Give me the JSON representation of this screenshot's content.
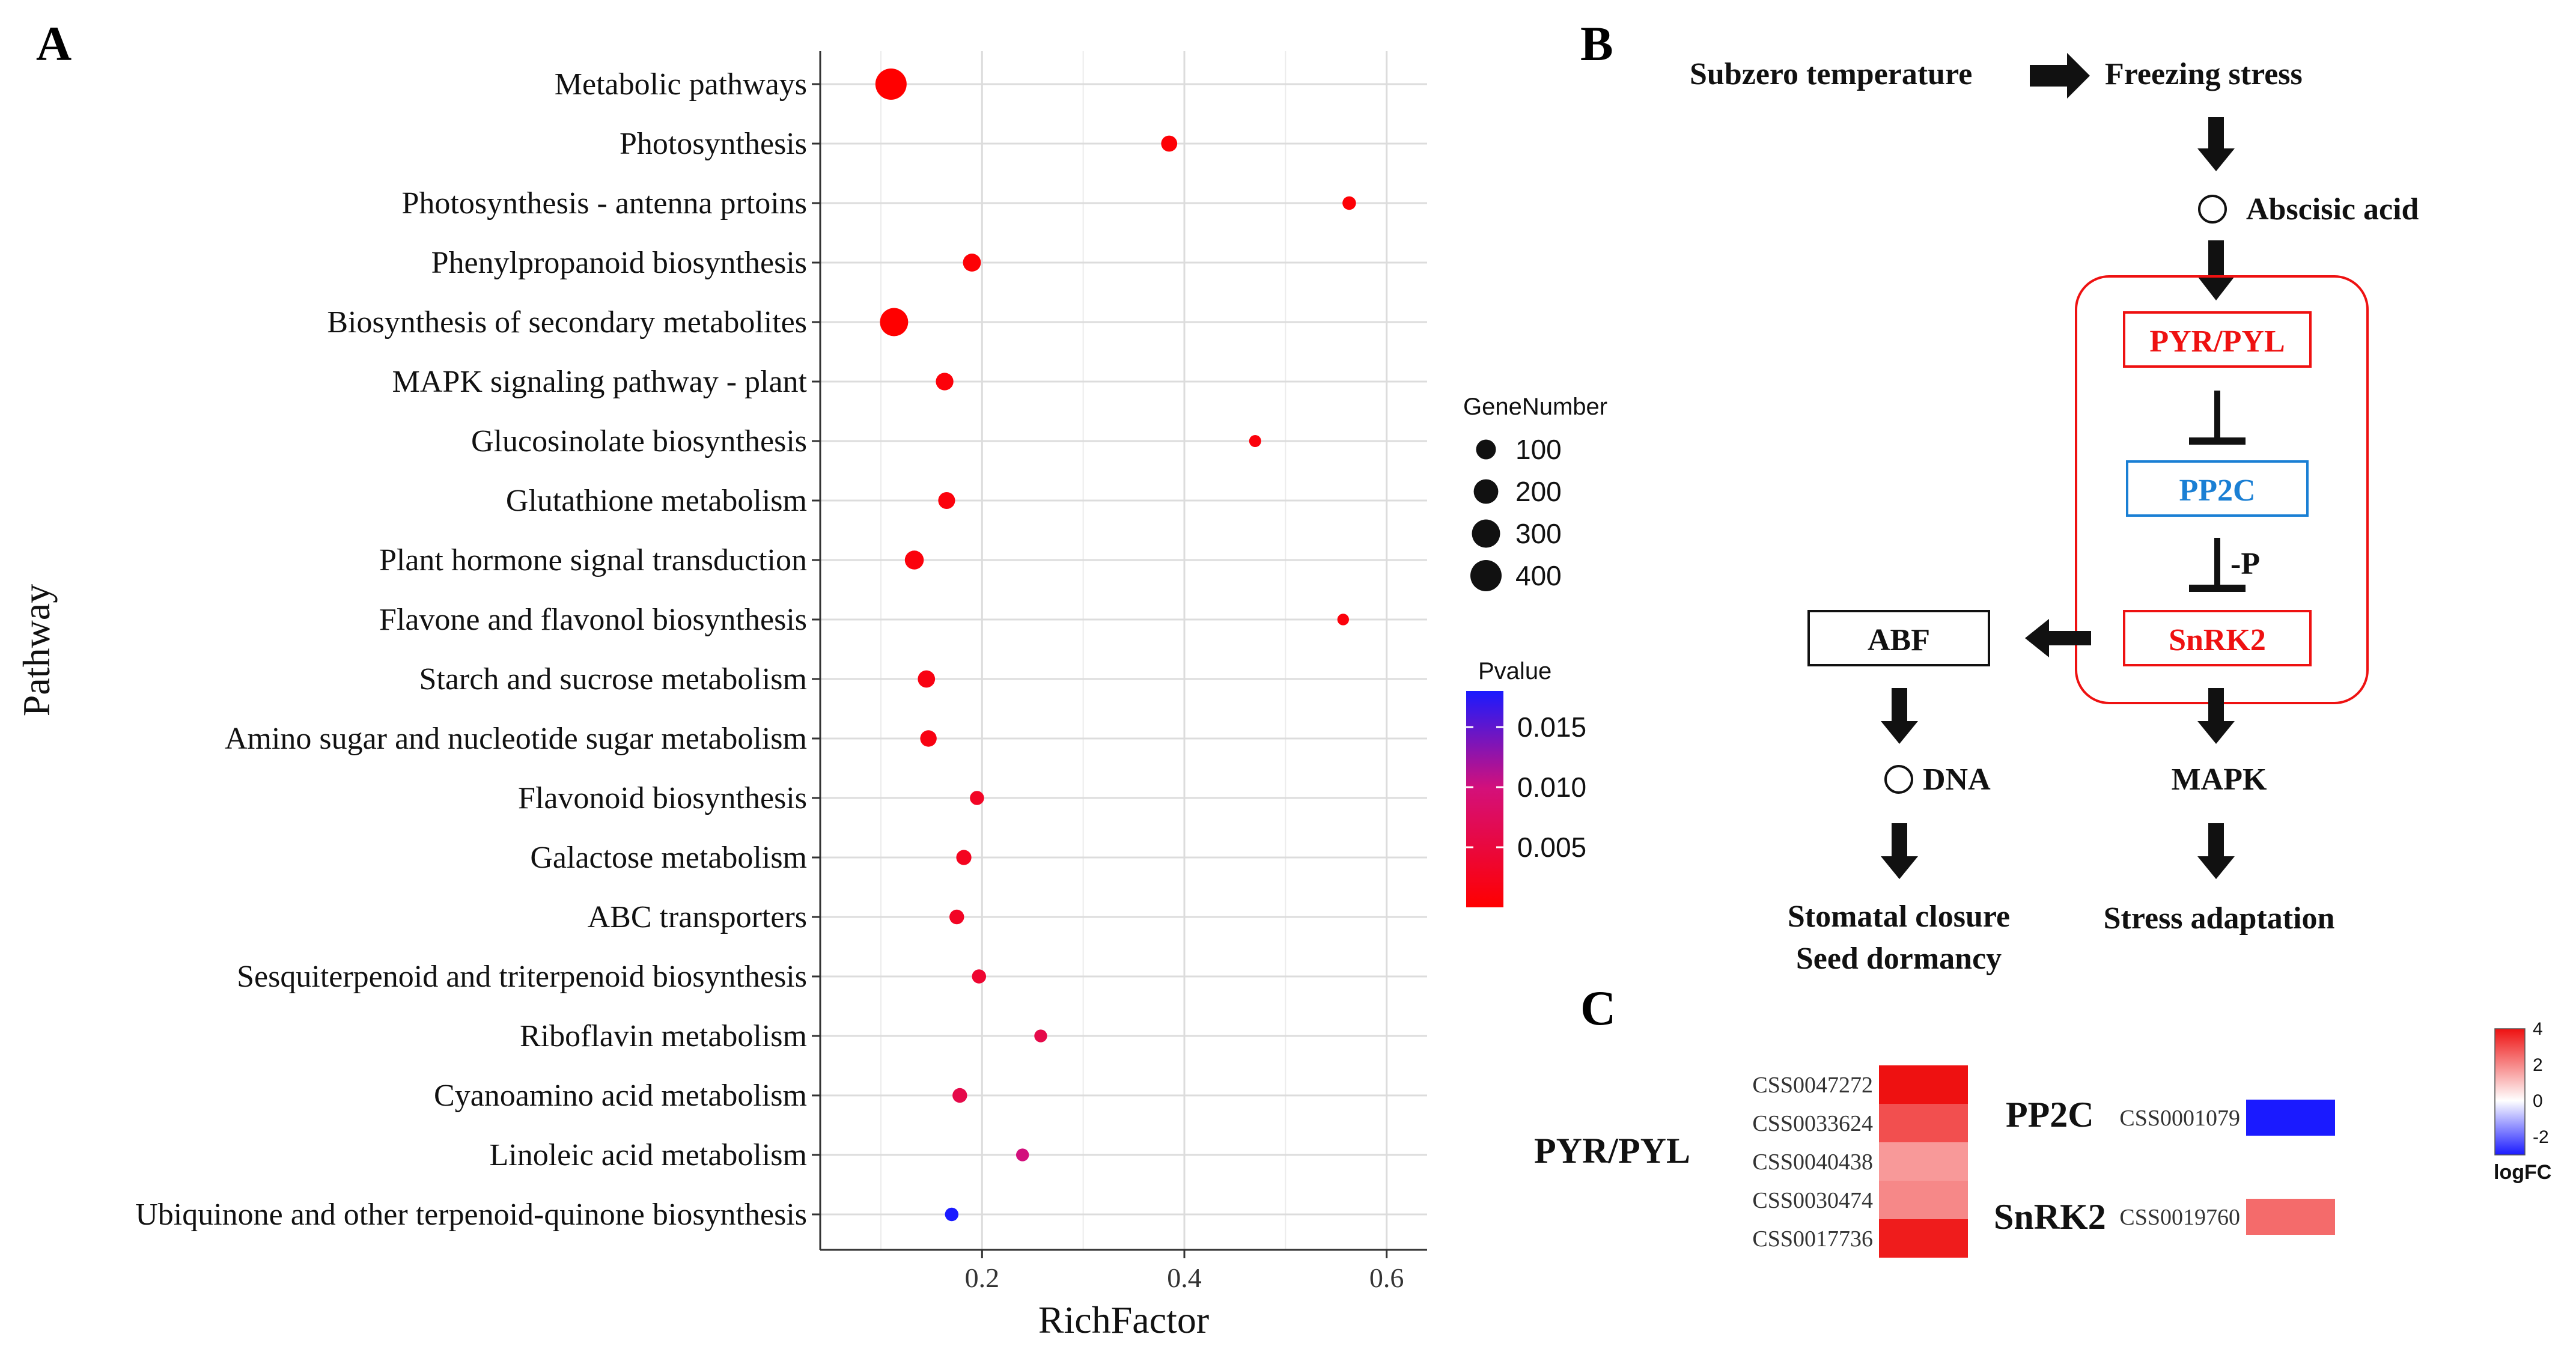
{
  "panel_letters": {
    "a": "A",
    "b": "B",
    "c": "C"
  },
  "chart_data": {
    "type": "scatter",
    "title": "",
    "xlabel": "RichFactor",
    "ylabel": "Pathway",
    "xlim": [
      0.04,
      0.64
    ],
    "xticks": [
      0.2,
      0.4,
      0.6
    ],
    "xtick_labels": [
      "0.2",
      "0.4",
      "0.6"
    ],
    "grid": true,
    "size_legend": {
      "title": "GeneNumber",
      "values": [
        100,
        200,
        300,
        400
      ],
      "labels": [
        "100",
        "200",
        "300",
        "400"
      ]
    },
    "color_legend": {
      "title": "Pvalue",
      "ticks": [
        0.005,
        0.01,
        0.015
      ],
      "labels": [
        "0.005",
        "0.010",
        "0.015"
      ],
      "range": [
        0,
        0.018
      ],
      "low_color": "#ff0000",
      "high_color": "#1a1aff"
    },
    "points": [
      {
        "pathway": "Metabolic pathways",
        "rich_factor": 0.11,
        "gene_number": 400,
        "pvalue": 0.0
      },
      {
        "pathway": "Photosynthesis",
        "rich_factor": 0.385,
        "gene_number": 45,
        "pvalue": 0.0005
      },
      {
        "pathway": "Photosynthesis - antenna prtoins",
        "rich_factor": 0.563,
        "gene_number": 20,
        "pvalue": 0.0005
      },
      {
        "pathway": "Phenylpropanoid biosynthesis",
        "rich_factor": 0.19,
        "gene_number": 70,
        "pvalue": 0.0005
      },
      {
        "pathway": "Biosynthesis of secondary metabolites",
        "rich_factor": 0.113,
        "gene_number": 300,
        "pvalue": 0.0
      },
      {
        "pathway": "MAPK signaling pathway - plant",
        "rich_factor": 0.163,
        "gene_number": 65,
        "pvalue": 0.0008
      },
      {
        "pathway": "Glucosinolate biosynthesis",
        "rich_factor": 0.47,
        "gene_number": 10,
        "pvalue": 0.001
      },
      {
        "pathway": "Glutathione metabolism",
        "rich_factor": 0.165,
        "gene_number": 55,
        "pvalue": 0.001
      },
      {
        "pathway": "Plant hormone signal transduction",
        "rich_factor": 0.133,
        "gene_number": 85,
        "pvalue": 0.001
      },
      {
        "pathway": "Flavone and flavonol biosynthesis",
        "rich_factor": 0.557,
        "gene_number": 8,
        "pvalue": 0.001
      },
      {
        "pathway": "Starch and sucrose metabolism",
        "rich_factor": 0.145,
        "gene_number": 60,
        "pvalue": 0.0015
      },
      {
        "pathway": "Amino sugar and nucleotide sugar metabolism",
        "rich_factor": 0.147,
        "gene_number": 50,
        "pvalue": 0.0015
      },
      {
        "pathway": "Flavonoid biosynthesis",
        "rich_factor": 0.195,
        "gene_number": 25,
        "pvalue": 0.003
      },
      {
        "pathway": "Galactose metabolism",
        "rich_factor": 0.182,
        "gene_number": 35,
        "pvalue": 0.0025
      },
      {
        "pathway": "ABC transporters",
        "rich_factor": 0.175,
        "gene_number": 30,
        "pvalue": 0.003
      },
      {
        "pathway": "Sesquiterpenoid and triterpenoid biosynthesis",
        "rich_factor": 0.197,
        "gene_number": 25,
        "pvalue": 0.004
      },
      {
        "pathway": "Riboflavin metabolism",
        "rich_factor": 0.258,
        "gene_number": 15,
        "pvalue": 0.006
      },
      {
        "pathway": "Cyanoamino acid metabolism",
        "rich_factor": 0.178,
        "gene_number": 30,
        "pvalue": 0.006
      },
      {
        "pathway": "Linoleic acid metabolism",
        "rich_factor": 0.24,
        "gene_number": 15,
        "pvalue": 0.01
      },
      {
        "pathway": "Ubiquinone and other terpenoid-quinone biosynthesis",
        "rich_factor": 0.17,
        "gene_number": 20,
        "pvalue": 0.018
      }
    ]
  },
  "pathway_diagram": {
    "subzero": "Subzero temperature",
    "freezing": "Freezing stress",
    "aba": "Abscisic acid",
    "pyr": "PYR/PYL",
    "pp2c": "PP2C",
    "phospho": "-P",
    "snrk2": "SnRK2",
    "abf": "ABF",
    "dna": "DNA",
    "mapk": "MAPK",
    "stomatal": "Stomatal closure",
    "seed": "Seed dormancy",
    "stress": "Stress adaptation",
    "colors": {
      "red": "#ee1111",
      "blue": "#1a7fd4",
      "box_outline": "#ee1111"
    }
  },
  "heatmap": {
    "pyr_label": "PYR/PYL",
    "pp2c_label": "PP2C",
    "snrk2_label": "SnRK2",
    "pyr_genes": [
      {
        "id": "CSS0047272",
        "logfc": 4.0
      },
      {
        "id": "CSS0033624",
        "logfc": 2.9
      },
      {
        "id": "CSS0040438",
        "logfc": 1.6
      },
      {
        "id": "CSS0030474",
        "logfc": 1.9
      },
      {
        "id": "CSS0017736",
        "logfc": 3.8
      }
    ],
    "pp2c_genes": [
      {
        "id": "CSS0001079",
        "logfc": -4.0
      }
    ],
    "snrk2_genes": [
      {
        "id": "CSS0019760",
        "logfc": 2.4
      }
    ],
    "colorbar": {
      "title": "logFC",
      "ticks": [
        4,
        2,
        0,
        -2
      ],
      "labels": [
        "4",
        "2",
        "0",
        "-2"
      ],
      "range": [
        -3,
        4
      ]
    }
  }
}
